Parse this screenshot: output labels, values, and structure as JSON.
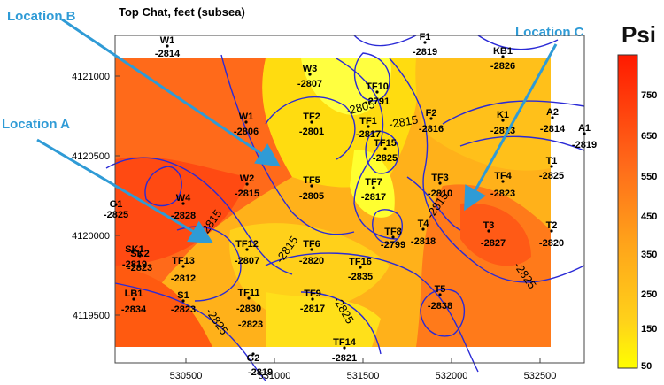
{
  "map": {
    "title": "Top Chat, feet (subsea)",
    "unit_label": "Psi",
    "x_ticks": [
      "530500",
      "531000",
      "531500",
      "532000",
      "532500"
    ],
    "y_ticks": [
      "4121000",
      "4120500",
      "4120000",
      "4119500"
    ],
    "colorbar_ticks": [
      "750",
      "650",
      "550",
      "450",
      "350",
      "250",
      "150",
      "50"
    ],
    "contour_labels": [
      "-2805",
      "-2815",
      "-2815",
      "-2815",
      "-2815",
      "-2825",
      "-2825",
      "-2825"
    ],
    "wells": [
      {
        "name": "W1",
        "depth": "-2814"
      },
      {
        "name": "F1",
        "depth": "-2819"
      },
      {
        "name": "W3",
        "depth": "-2807"
      },
      {
        "name": "KB1",
        "depth": "-2826"
      },
      {
        "name": "TF10",
        "depth": "-2791"
      },
      {
        "name": "W1",
        "depth": "-2806"
      },
      {
        "name": "TF2",
        "depth": "-2801"
      },
      {
        "name": "TF1",
        "depth": "-2817"
      },
      {
        "name": "F2",
        "depth": "-2816"
      },
      {
        "name": "K1",
        "depth": "-2813"
      },
      {
        "name": "A2",
        "depth": "-2814"
      },
      {
        "name": "A1",
        "depth": "-2819"
      },
      {
        "name": "TF15",
        "depth": "-2825"
      },
      {
        "name": "T1",
        "depth": "-2825"
      },
      {
        "name": "W2",
        "depth": "-2815"
      },
      {
        "name": "TF5",
        "depth": "-2805"
      },
      {
        "name": "TF3",
        "depth": "-2810"
      },
      {
        "name": "TF4",
        "depth": "-2823"
      },
      {
        "name": "W4",
        "depth": "-2828"
      },
      {
        "name": "G1",
        "depth": "-2825"
      },
      {
        "name": "TF7",
        "depth": "-2817"
      },
      {
        "name": "T3",
        "depth": "-2827"
      },
      {
        "name": "T2",
        "depth": "-2820"
      },
      {
        "name": "TF8",
        "depth": "-2799"
      },
      {
        "name": "T4",
        "depth": "-2818"
      },
      {
        "name": "TF12",
        "depth": "-2807"
      },
      {
        "name": "TF6",
        "depth": "-2820"
      },
      {
        "name": "SK1",
        "depth": "-2819"
      },
      {
        "name": "SK2",
        "depth": "-2823"
      },
      {
        "name": "TF13",
        "depth": "-2812"
      },
      {
        "name": "TF16",
        "depth": "-2835"
      },
      {
        "name": "TF11",
        "depth": "-2830"
      },
      {
        "name": "TF9",
        "depth": "-2817"
      },
      {
        "name": "T5",
        "depth": "-2838"
      },
      {
        "name": "LB1",
        "depth": "-2834"
      },
      {
        "name": "S1",
        "depth": "-2823"
      },
      {
        "name": "G2",
        "depth": "-2819"
      },
      {
        "name": "TF14",
        "depth": "-2821"
      }
    ],
    "extra_depth_label": "-2823",
    "callouts": {
      "a": "Location A",
      "b": "Location B",
      "c": "Location C"
    },
    "colors": {
      "callout": "#2f9bd6",
      "contour": "#2a2ad6",
      "low": "#ffff00",
      "high": "#ff0000"
    }
  }
}
